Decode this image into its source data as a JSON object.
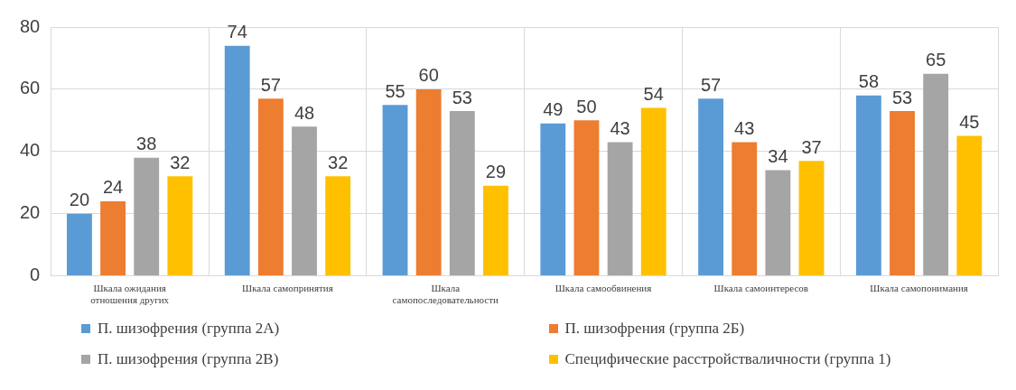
{
  "chart_data": {
    "type": "bar",
    "categories": [
      "Шкала ожидания отношения других",
      "Шкала самопринятия",
      "Шкала самопоследовательности",
      "Шкала самообвинения",
      "Шкала самоинтересов",
      "Шкала самопонимания"
    ],
    "series": [
      {
        "name": "П. шизофрения (группа 2А)",
        "color": "#5b9bd5",
        "values": [
          20,
          74,
          55,
          49,
          57,
          58
        ]
      },
      {
        "name": "П. шизофрения (группа 2Б)",
        "color": "#ed7d31",
        "values": [
          24,
          57,
          60,
          50,
          43,
          53
        ]
      },
      {
        "name": "П. шизофрения (группа 2В)",
        "color": "#a5a5a5",
        "values": [
          38,
          48,
          53,
          43,
          34,
          65
        ]
      },
      {
        "name": "Специфические расстройстваличности (группа 1)",
        "color": "#ffc000",
        "values": [
          32,
          32,
          29,
          54,
          37,
          45
        ]
      }
    ],
    "ylim": [
      0,
      80
    ],
    "yticks": [
      0,
      20,
      40,
      60,
      80
    ],
    "grid": true,
    "legend": "bottom",
    "data_labels": true
  }
}
